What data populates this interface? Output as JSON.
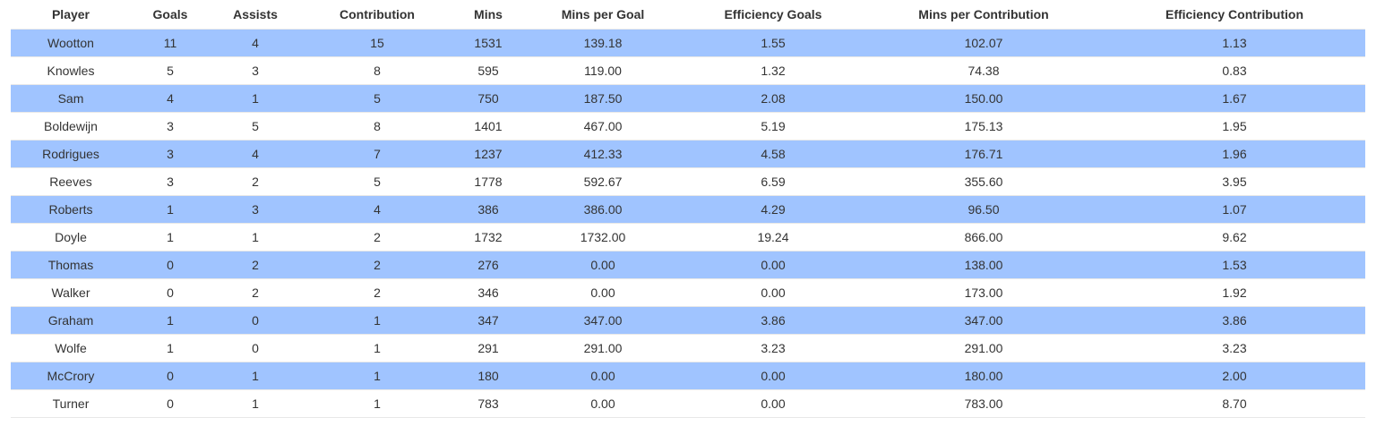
{
  "colors": {
    "stripe": "#a0c4ff",
    "plain": "#ffffff",
    "text": "#333333"
  },
  "table": {
    "columns": [
      "Player",
      "Goals",
      "Assists",
      "Contribution",
      "Mins",
      "Mins per Goal",
      "Efficiency Goals",
      "Mins per Contribution",
      "Efficiency Contribution"
    ],
    "rows": [
      [
        "Wootton",
        "11",
        "4",
        "15",
        "1531",
        "139.18",
        "1.55",
        "102.07",
        "1.13"
      ],
      [
        "Knowles",
        "5",
        "3",
        "8",
        "595",
        "119.00",
        "1.32",
        "74.38",
        "0.83"
      ],
      [
        "Sam",
        "4",
        "1",
        "5",
        "750",
        "187.50",
        "2.08",
        "150.00",
        "1.67"
      ],
      [
        "Boldewijn",
        "3",
        "5",
        "8",
        "1401",
        "467.00",
        "5.19",
        "175.13",
        "1.95"
      ],
      [
        "Rodrigues",
        "3",
        "4",
        "7",
        "1237",
        "412.33",
        "4.58",
        "176.71",
        "1.96"
      ],
      [
        "Reeves",
        "3",
        "2",
        "5",
        "1778",
        "592.67",
        "6.59",
        "355.60",
        "3.95"
      ],
      [
        "Roberts",
        "1",
        "3",
        "4",
        "386",
        "386.00",
        "4.29",
        "96.50",
        "1.07"
      ],
      [
        "Doyle",
        "1",
        "1",
        "2",
        "1732",
        "1732.00",
        "19.24",
        "866.00",
        "9.62"
      ],
      [
        "Thomas",
        "0",
        "2",
        "2",
        "276",
        "0.00",
        "0.00",
        "138.00",
        "1.53"
      ],
      [
        "Walker",
        "0",
        "2",
        "2",
        "346",
        "0.00",
        "0.00",
        "173.00",
        "1.92"
      ],
      [
        "Graham",
        "1",
        "0",
        "1",
        "347",
        "347.00",
        "3.86",
        "347.00",
        "3.86"
      ],
      [
        "Wolfe",
        "1",
        "0",
        "1",
        "291",
        "291.00",
        "3.23",
        "291.00",
        "3.23"
      ],
      [
        "McCrory",
        "0",
        "1",
        "1",
        "180",
        "0.00",
        "0.00",
        "180.00",
        "2.00"
      ],
      [
        "Turner",
        "0",
        "1",
        "1",
        "783",
        "0.00",
        "0.00",
        "783.00",
        "8.70"
      ]
    ]
  }
}
